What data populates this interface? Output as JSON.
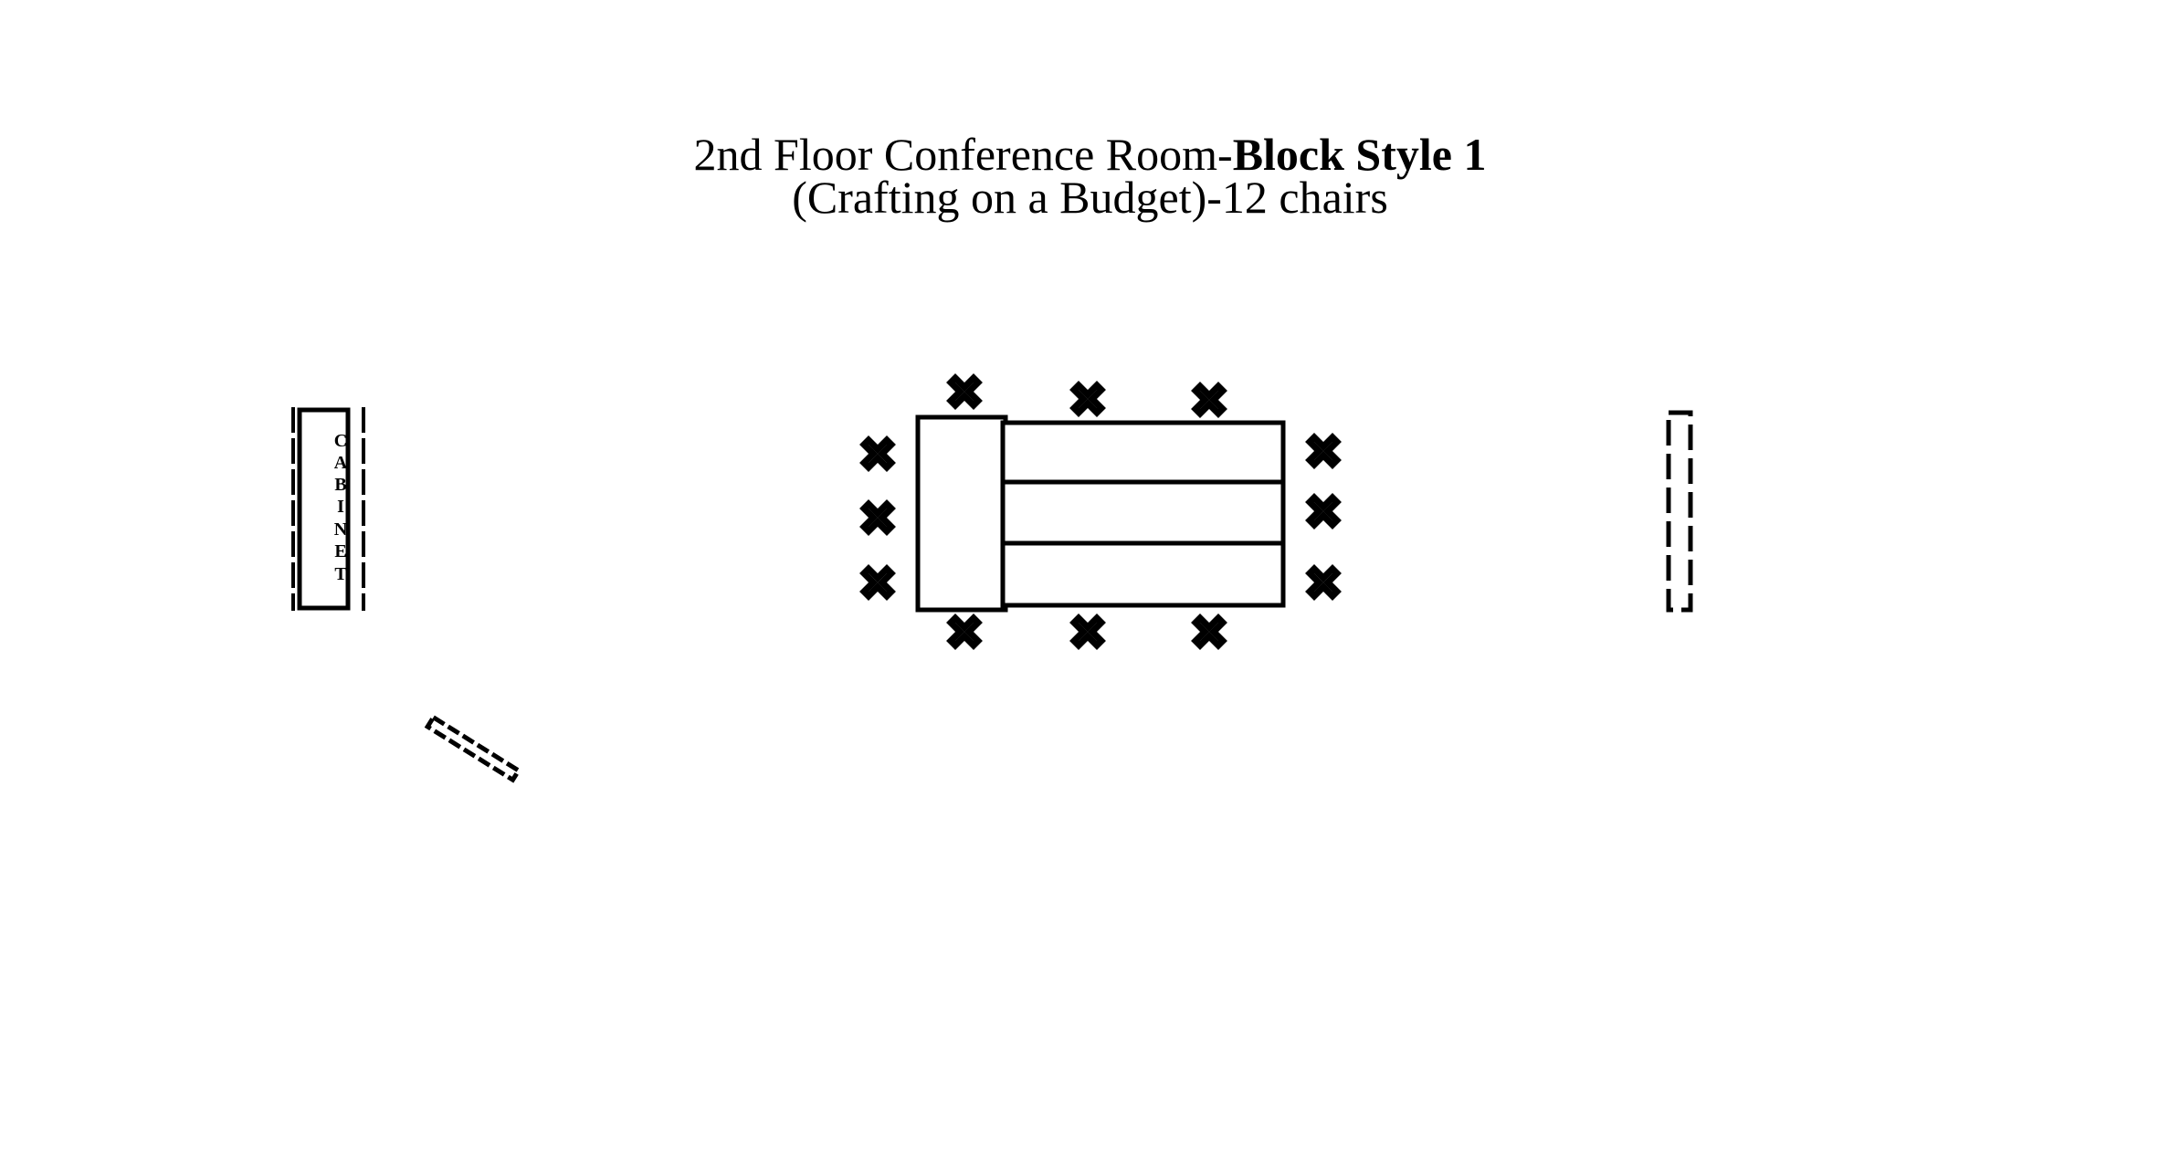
{
  "title": {
    "line1_regular": "2nd Floor Conference Room-",
    "line1_bold": "Block Style 1",
    "line2": "(Crafting on a Budget)-12 chairs"
  },
  "cabinet": {
    "letters": [
      "C",
      "A",
      "B",
      "I",
      "N",
      "E",
      "T"
    ]
  },
  "chairs": {
    "count": 12
  }
}
